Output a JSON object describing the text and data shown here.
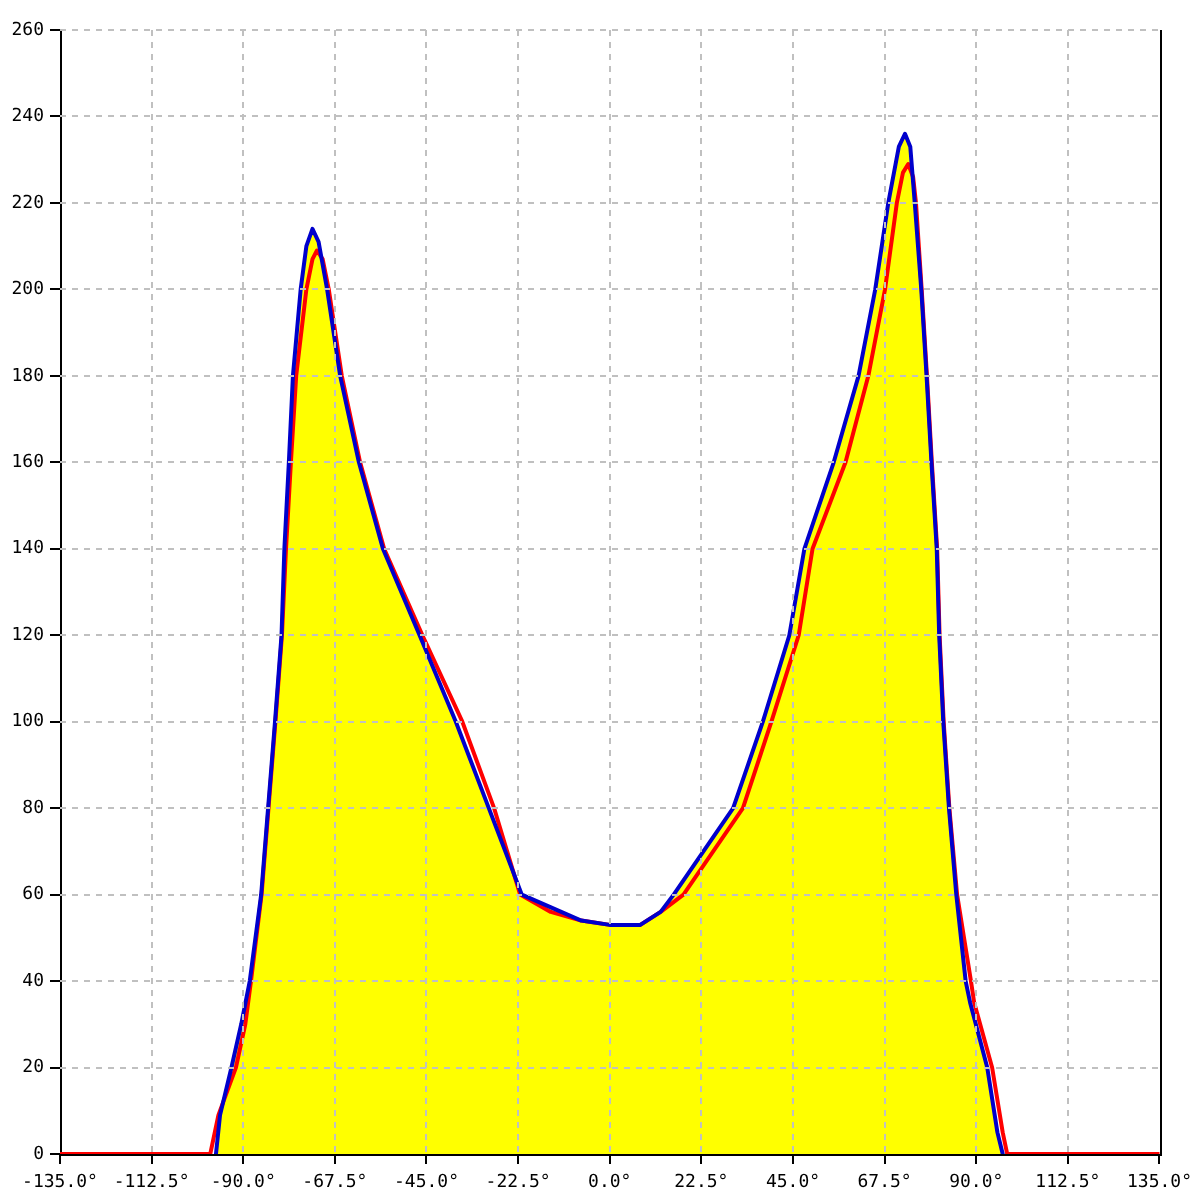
{
  "chart_data": {
    "type": "line",
    "xlim": [
      -135,
      135
    ],
    "xticks": [
      {
        "value": -135,
        "label": "-135.0°"
      },
      {
        "value": -112.5,
        "label": "-112.5°"
      },
      {
        "value": -90,
        "label": "-90.0°"
      },
      {
        "value": -67.5,
        "label": "-67.5°"
      },
      {
        "value": -45,
        "label": "-45.0°"
      },
      {
        "value": -22.5,
        "label": "-22.5°"
      },
      {
        "value": 0,
        "label": "0.0°"
      },
      {
        "value": 22.5,
        "label": "22.5°"
      },
      {
        "value": 45,
        "label": "45.0°"
      },
      {
        "value": 67.5,
        "label": "67.5°"
      },
      {
        "value": 90,
        "label": "90.0°"
      },
      {
        "value": 112.5,
        "label": "112.5°"
      },
      {
        "value": 135,
        "label": "135.0°"
      }
    ],
    "ylim": [
      0,
      260
    ],
    "yticks": [
      0,
      20,
      40,
      60,
      80,
      100,
      120,
      140,
      160,
      180,
      200,
      220,
      240,
      260
    ],
    "grid": true,
    "series": [
      {
        "type": "line",
        "color": "#0000cc",
        "x": [
          -96.7,
          -95.7,
          -92.9,
          -90.5,
          -88.4,
          -85.6,
          -83.9,
          -82.2,
          -80.6,
          -79.9,
          -78.8,
          -77.8,
          -75.9,
          -74.5,
          -73.0,
          -71.5,
          -69.4,
          -66.2,
          -61.6,
          -55.7,
          -46.7,
          -37.8,
          -29.7,
          -21.6,
          -14.3,
          -7.0,
          0,
          7.5,
          12.5,
          15.7,
          30.3,
          37.6,
          44.1,
          47.8,
          55.0,
          61.1,
          65.2,
          68.4,
          71.0,
          72.5,
          73.8,
          74.9,
          76.5,
          77.8,
          79.0,
          80.3,
          80.9,
          81.9,
          83.3,
          85.1,
          87.4,
          88.5,
          92.7,
          95.2,
          96.5
        ],
        "values": [
          0,
          9,
          20,
          30,
          40,
          60,
          80,
          100,
          120,
          140,
          160,
          180,
          200,
          210,
          214,
          211,
          200,
          180,
          160,
          140,
          120,
          100,
          80,
          60,
          57,
          54,
          53,
          53,
          56,
          60,
          80,
          100,
          120,
          140,
          160,
          180,
          200,
          220,
          233,
          236,
          233,
          220,
          200,
          180,
          160,
          140,
          120,
          100,
          80,
          60,
          40,
          35,
          20,
          5,
          0
        ]
      },
      {
        "type": "line",
        "color": "#ff0000",
        "x": [
          -135,
          -98.1,
          -96.1,
          -91.8,
          -89.5,
          -88.1,
          -85.5,
          -83.8,
          -82.1,
          -80.5,
          -79.5,
          -78.3,
          -77.0,
          -74.5,
          -73.0,
          -71.9,
          -70.5,
          -69.0,
          -65.8,
          -61.3,
          -55.4,
          -46.0,
          -36.2,
          -28.4,
          -22.0,
          -14.5,
          -7.0,
          0,
          7.5,
          12.5,
          18.1,
          32.7,
          39.7,
          46.4,
          49.8,
          57.9,
          63.5,
          67.6,
          70.5,
          72.0,
          73.3,
          74.5,
          75.2,
          76.6,
          77.9,
          79.1,
          80.4,
          81.0,
          82.0,
          83.4,
          85.3,
          88.7,
          89.5,
          93.9,
          96.5,
          97.6,
          135
        ],
        "values": [
          0,
          0,
          9,
          20,
          30,
          40,
          60,
          80,
          100,
          120,
          140,
          160,
          180,
          200,
          207,
          209,
          207,
          200,
          180,
          160,
          140,
          120,
          100,
          80,
          60,
          56,
          54,
          53,
          53,
          56,
          60,
          80,
          100,
          120,
          140,
          160,
          180,
          200,
          220,
          227,
          229,
          226,
          220,
          200,
          180,
          160,
          140,
          120,
          100,
          80,
          60,
          40,
          35,
          20,
          5,
          0,
          0
        ]
      },
      {
        "type": "area",
        "color": "#ffff00",
        "x": [
          -135,
          -96.7,
          -95.7,
          -92.9,
          -90.5,
          -88.4,
          -85.6,
          -83.9,
          -82.2,
          -80.6,
          -79.9,
          -78.8,
          -77.8,
          -75.9,
          -74.5,
          -73.0,
          -71.5,
          -69.4,
          -66.2,
          -61.6,
          -55.7,
          -46.7,
          -37.8,
          -29.7,
          -21.6,
          -14.3,
          -7.0,
          0,
          7.5,
          12.5,
          15.7,
          30.3,
          37.6,
          44.1,
          47.8,
          55.0,
          61.1,
          65.2,
          68.4,
          71.0,
          72.5,
          73.8,
          74.9,
          76.5,
          77.8,
          79.0,
          80.3,
          80.9,
          81.9,
          83.3,
          85.1,
          87.4,
          88.5,
          92.7,
          95.2,
          96.5,
          135
        ],
        "values": [
          0,
          0,
          9,
          20,
          30,
          40,
          60,
          80,
          100,
          120,
          140,
          160,
          180,
          200,
          210,
          214,
          211,
          200,
          180,
          160,
          140,
          120,
          100,
          80,
          60,
          57,
          54,
          53,
          53,
          56,
          60,
          80,
          100,
          120,
          140,
          160,
          180,
          200,
          220,
          233,
          236,
          233,
          220,
          200,
          180,
          160,
          140,
          120,
          100,
          80,
          60,
          40,
          35,
          20,
          5,
          0,
          0
        ]
      }
    ]
  }
}
